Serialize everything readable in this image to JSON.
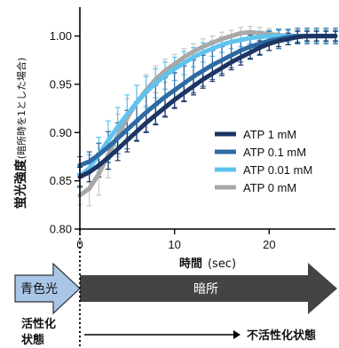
{
  "chart_data": {
    "type": "line",
    "ylabel": "蛍光強度",
    "ylabel_sub": "(暗所時を1とした場合)",
    "xlabel": "時間",
    "xlabel_unit": "(sec)",
    "xlim": [
      0,
      27
    ],
    "ylim": [
      0.8,
      1.03
    ],
    "xticks": [
      0,
      10,
      20
    ],
    "yticks": [
      "0.80",
      "0.85",
      "0.90",
      "0.95",
      "1.00"
    ],
    "legend_position": "lower-right",
    "series": [
      {
        "name": "ATP 1 mM",
        "color": "#1c3563",
        "error_color": "#1c3563",
        "x": [
          0,
          1,
          2,
          3,
          4,
          5,
          6,
          7,
          8,
          9,
          10,
          11,
          12,
          13,
          14,
          15,
          16,
          17,
          18,
          19,
          20,
          21,
          22,
          23,
          24,
          25,
          26,
          27
        ],
        "y": [
          0.854,
          0.859,
          0.866,
          0.874,
          0.883,
          0.892,
          0.901,
          0.91,
          0.918,
          0.926,
          0.934,
          0.941,
          0.948,
          0.955,
          0.961,
          0.967,
          0.973,
          0.978,
          0.983,
          0.988,
          0.992,
          0.995,
          0.997,
          0.999,
          1.0,
          1.0,
          1.0,
          1.0
        ],
        "err": [
          0.01,
          0.01,
          0.012,
          0.012,
          0.012,
          0.012,
          0.01,
          0.01,
          0.01,
          0.01,
          0.009,
          0.009,
          0.009,
          0.009,
          0.008,
          0.008,
          0.008,
          0.008,
          0.007,
          0.007,
          0.007,
          0.006,
          0.006,
          0.006,
          0.005,
          0.005,
          0.005,
          0.005
        ]
      },
      {
        "name": "ATP 0.1 mM",
        "color": "#2e6aa3",
        "error_color": "#2e6aa3",
        "x": [
          0,
          1,
          2,
          3,
          4,
          5,
          6,
          7,
          8,
          9,
          10,
          11,
          12,
          13,
          14,
          15,
          16,
          17,
          18,
          19,
          20,
          21,
          22,
          23,
          24,
          25,
          26,
          27
        ],
        "y": [
          0.866,
          0.87,
          0.877,
          0.885,
          0.894,
          0.903,
          0.912,
          0.921,
          0.929,
          0.937,
          0.944,
          0.951,
          0.958,
          0.964,
          0.97,
          0.975,
          0.98,
          0.985,
          0.989,
          0.992,
          0.995,
          0.997,
          0.999,
          1.0,
          1.0,
          1.0,
          1.0,
          1.0
        ],
        "err": [
          0.009,
          0.01,
          0.012,
          0.016,
          0.016,
          0.02,
          0.02,
          0.02,
          0.02,
          0.02,
          0.018,
          0.018,
          0.017,
          0.016,
          0.015,
          0.014,
          0.013,
          0.012,
          0.012,
          0.012,
          0.01,
          0.01,
          0.008,
          0.008,
          0.008,
          0.008,
          0.008,
          0.008
        ]
      },
      {
        "name": "ATP 0.01 mM",
        "color": "#5ec3ef",
        "error_color": "#5ec3ef",
        "x": [
          0,
          1,
          2,
          3,
          4,
          5,
          6,
          7,
          8,
          9,
          10,
          11,
          12,
          13,
          14,
          15,
          16,
          17,
          18,
          19,
          20,
          21,
          22,
          23,
          24,
          25,
          26,
          27
        ],
        "y": [
          0.855,
          0.863,
          0.877,
          0.892,
          0.906,
          0.919,
          0.931,
          0.942,
          0.951,
          0.959,
          0.966,
          0.972,
          0.978,
          0.983,
          0.987,
          0.991,
          0.994,
          0.996,
          0.998,
          0.999,
          1.0,
          1.0,
          1.0,
          1.0,
          1.0,
          1.0,
          1.0,
          1.0
        ],
        "err": [
          0.012,
          0.014,
          0.018,
          0.02,
          0.02,
          0.02,
          0.018,
          0.016,
          0.015,
          0.014,
          0.012,
          0.012,
          0.01,
          0.01,
          0.008,
          0.008,
          0.007,
          0.007,
          0.006,
          0.006,
          0.006,
          0.006,
          0.006,
          0.006,
          0.006,
          0.006,
          0.006,
          0.006
        ]
      },
      {
        "name": "ATP 0 mM",
        "color": "#a8a8a8",
        "error_color": "#c8c8c8",
        "x": [
          0,
          1,
          2,
          3,
          4,
          5,
          6,
          7,
          8,
          9,
          10,
          11,
          12,
          13,
          14,
          15,
          16,
          17,
          18,
          19,
          20,
          21,
          22,
          23,
          24,
          25,
          26,
          27
        ],
        "y": [
          0.835,
          0.842,
          0.857,
          0.877,
          0.897,
          0.915,
          0.931,
          0.944,
          0.955,
          0.964,
          0.971,
          0.978,
          0.984,
          0.989,
          0.993,
          0.997,
          1.0,
          1.003,
          1.004,
          1.003,
          1.002,
          1.001,
          1.0,
          1.0,
          1.0,
          1.0,
          1.0,
          1.0
        ],
        "err": [
          0.01,
          0.018,
          0.022,
          0.024,
          0.022,
          0.02,
          0.018,
          0.016,
          0.014,
          0.012,
          0.01,
          0.009,
          0.008,
          0.008,
          0.007,
          0.007,
          0.006,
          0.006,
          0.006,
          0.006,
          0.006,
          0.006,
          0.006,
          0.006,
          0.006,
          0.006,
          0.006,
          0.006
        ]
      }
    ]
  },
  "timeline": {
    "blue_light_label": "青色光",
    "dark_label": "暗所",
    "active_state_line1": "活性化",
    "active_state_line2": "状態",
    "inactive_state": "不活性化状態",
    "blue_color": "#a9c6e6",
    "dark_color": "#444444"
  }
}
